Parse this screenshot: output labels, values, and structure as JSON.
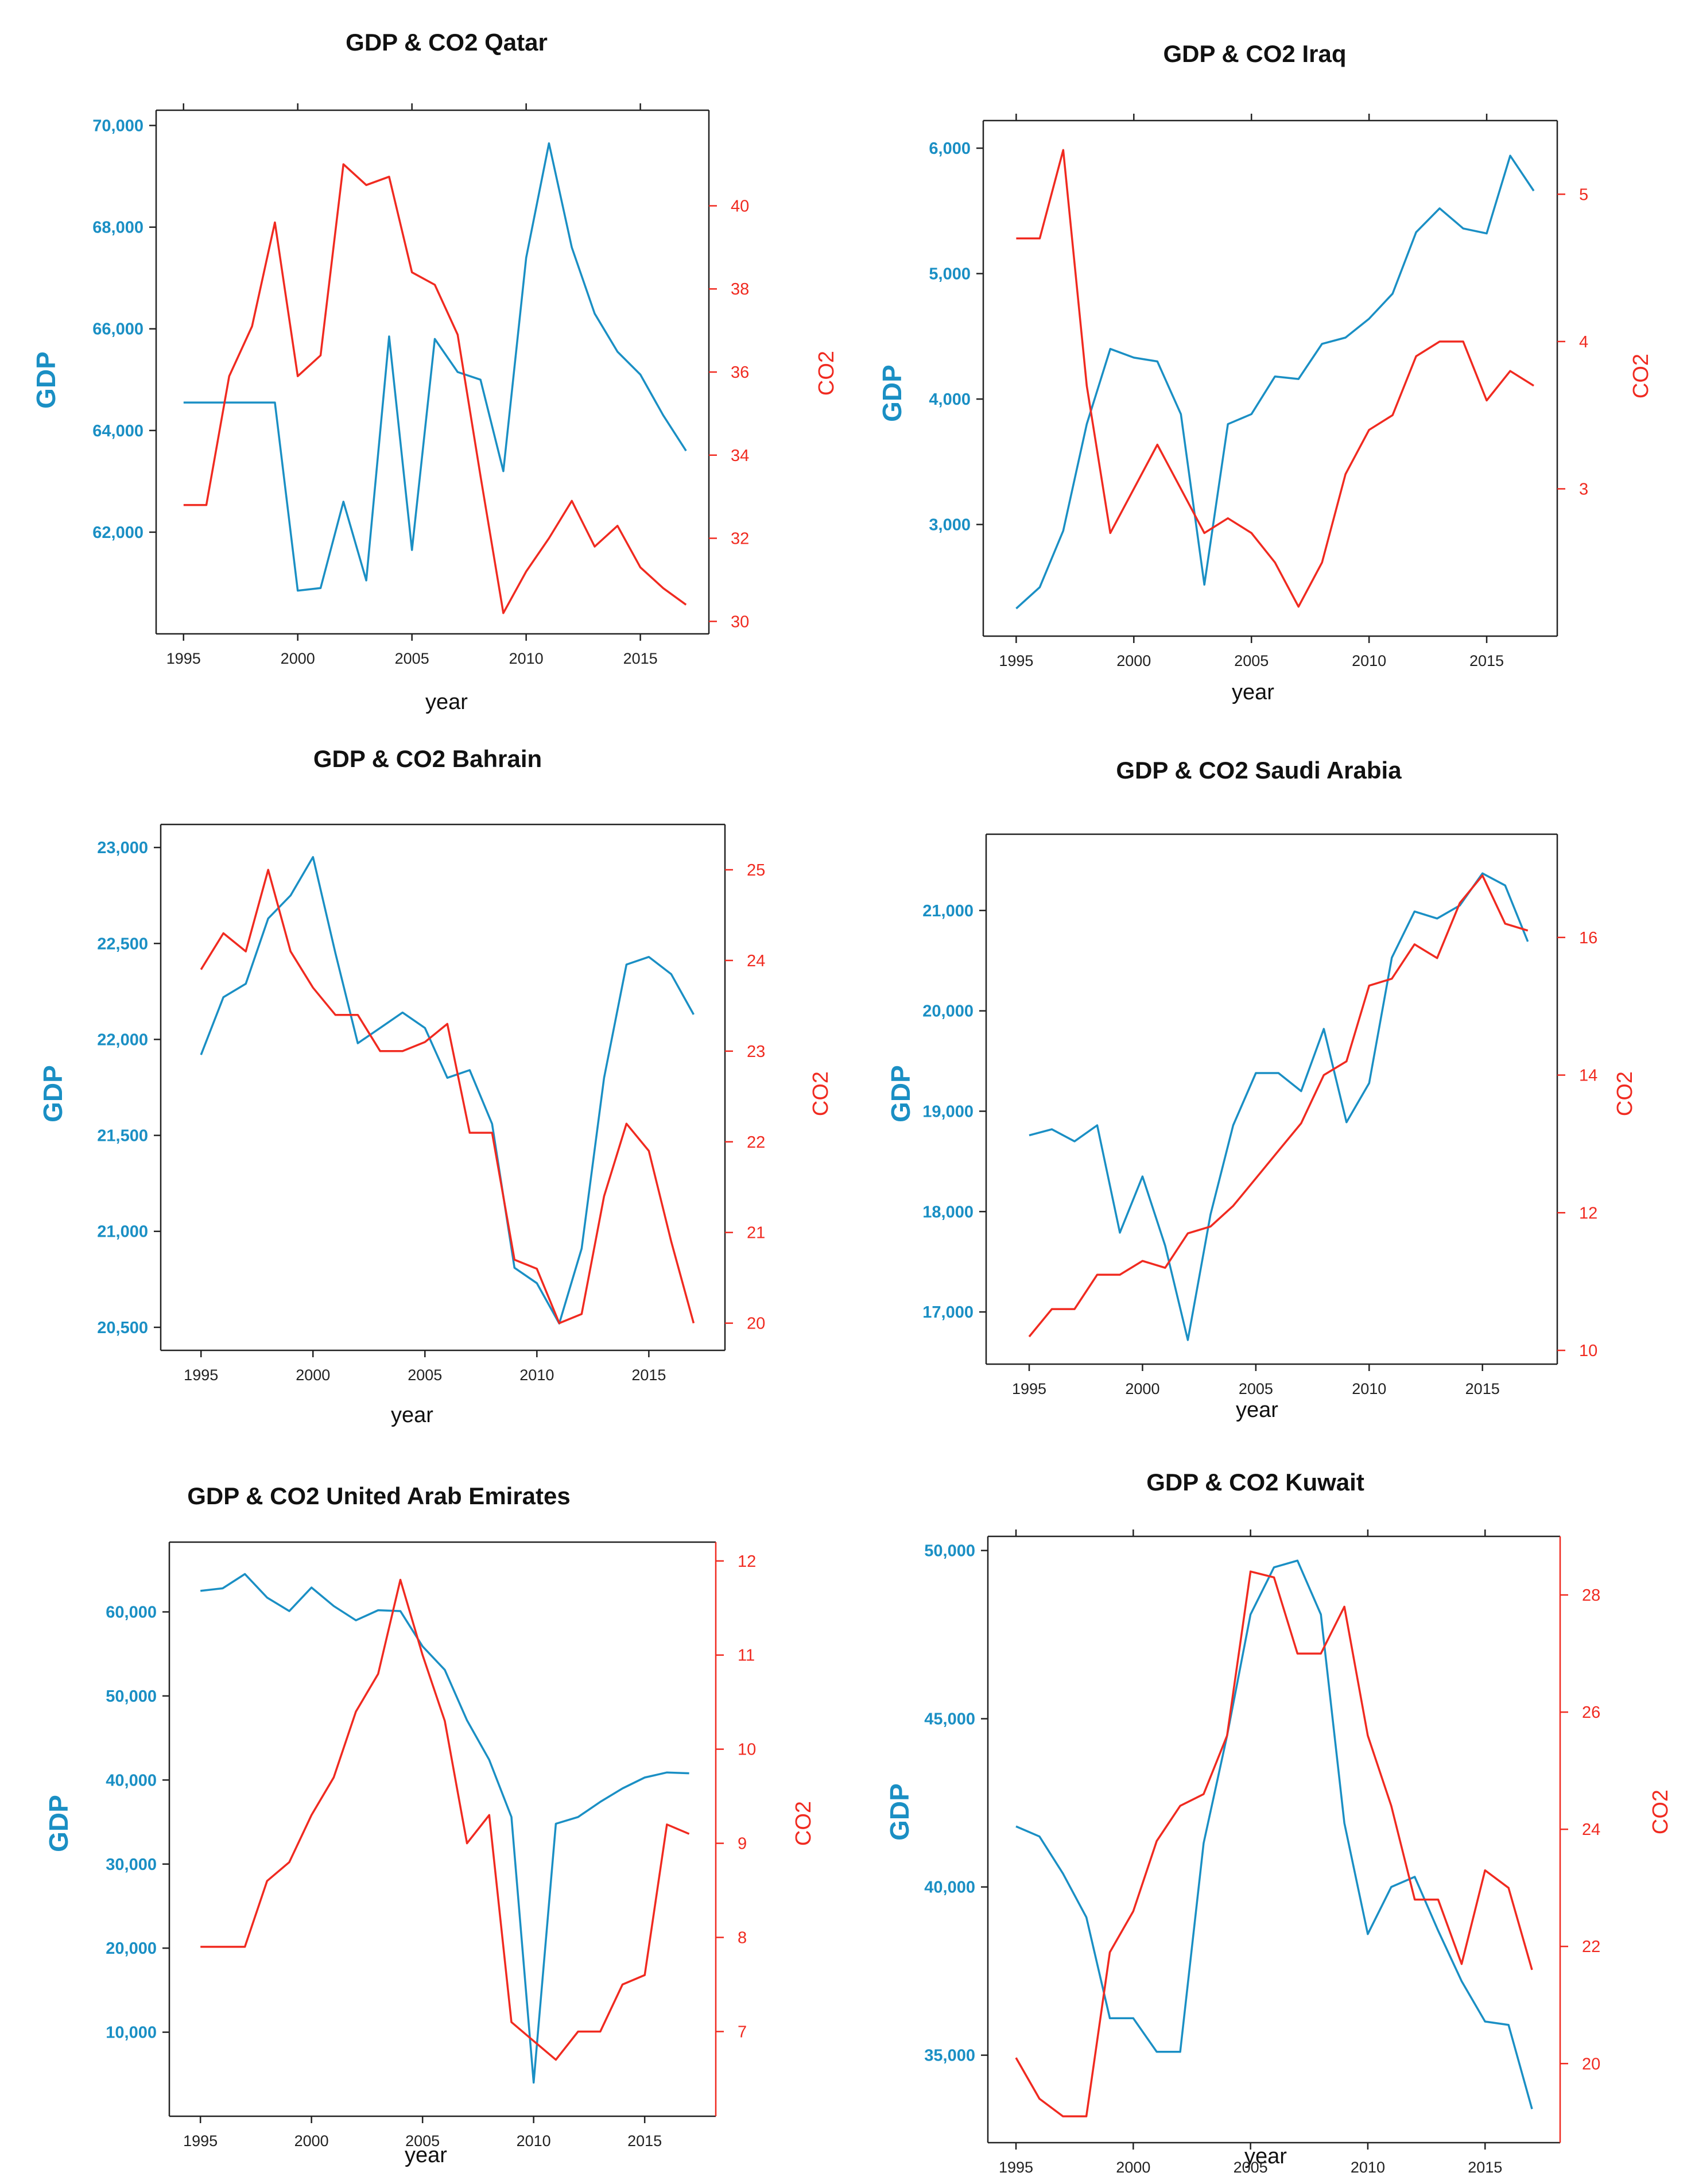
{
  "colors": {
    "gdp": "#1a8fc4",
    "co2": "#f02a20",
    "axis": "#222222"
  },
  "chart_data": [
    {
      "type": "line",
      "title": "GDP & CO2 Qatar",
      "xlabel": "year",
      "ylabel": "GDP",
      "y2label": "CO2",
      "x": [
        1995,
        1996,
        1997,
        1998,
        1999,
        2000,
        2001,
        2002,
        2003,
        2004,
        2005,
        2006,
        2007,
        2008,
        2009,
        2010,
        2011,
        2012,
        2013,
        2014,
        2015,
        2016,
        2017
      ],
      "xticks": [
        "1995",
        "2000",
        "2005",
        "2010",
        "2015"
      ],
      "xlim": [
        1993.8,
        2018
      ],
      "ylim": [
        60000,
        70300
      ],
      "y2lim": [
        29.7,
        42.3
      ],
      "yticks": [
        {
          "v": 62000,
          "label": "62,000"
        },
        {
          "v": 64000,
          "label": "64,000"
        },
        {
          "v": 66000,
          "label": "66,000"
        },
        {
          "v": 68000,
          "label": "68,000"
        },
        {
          "v": 70000,
          "label": "70,000"
        }
      ],
      "y2ticks": [
        {
          "v": 30,
          "label": "30"
        },
        {
          "v": 32,
          "label": "32"
        },
        {
          "v": 34,
          "label": "34"
        },
        {
          "v": 36,
          "label": "36"
        },
        {
          "v": 38,
          "label": "38"
        },
        {
          "v": 40,
          "label": "40"
        }
      ],
      "series": [
        {
          "name": "GDP",
          "axis": "left",
          "values": [
            64550,
            64550,
            64550,
            64550,
            64550,
            60850,
            60900,
            62600,
            61050,
            65850,
            61650,
            65800,
            65150,
            65000,
            63200,
            67400,
            69650,
            67600,
            66300,
            65550,
            65100,
            64300,
            63600
          ]
        },
        {
          "name": "CO2",
          "axis": "right",
          "values": [
            32.8,
            32.8,
            35.9,
            37.1,
            39.6,
            35.9,
            36.4,
            41.0,
            40.5,
            40.7,
            38.4,
            38.1,
            36.9,
            33.5,
            30.2,
            31.2,
            32.0,
            32.9,
            31.8,
            32.3,
            31.3,
            30.8,
            30.4
          ]
        }
      ]
    },
    {
      "type": "line",
      "title": "GDP & CO2 Iraq",
      "xlabel": "year",
      "ylabel": "GDP",
      "y2label": "CO2",
      "x": [
        1995,
        1996,
        1997,
        1998,
        1999,
        2000,
        2001,
        2002,
        2003,
        2004,
        2005,
        2006,
        2007,
        2008,
        2009,
        2010,
        2011,
        2012,
        2013,
        2014,
        2015,
        2016,
        2017
      ],
      "xticks": [
        "1995",
        "2000",
        "2005",
        "2010",
        "2015"
      ],
      "xlim": [
        1993.6,
        2018
      ],
      "ylim": [
        2110,
        6220
      ],
      "y2lim": [
        2.0,
        5.5
      ],
      "yticks": [
        {
          "v": 3000,
          "label": "3,000"
        },
        {
          "v": 4000,
          "label": "4,000"
        },
        {
          "v": 5000,
          "label": "5,000"
        },
        {
          "v": 6000,
          "label": "6,000"
        }
      ],
      "y2ticks": [
        {
          "v": 3,
          "label": "3"
        },
        {
          "v": 4,
          "label": "4"
        },
        {
          "v": 5,
          "label": "5"
        }
      ],
      "series": [
        {
          "name": "GDP",
          "axis": "left",
          "values": [
            2330,
            2500,
            2950,
            3800,
            4400,
            4330,
            4300,
            3880,
            2520,
            3800,
            3880,
            4180,
            4160,
            4440,
            4490,
            4640,
            4840,
            5330,
            5520,
            5360,
            5320,
            5940,
            5660
          ]
        },
        {
          "name": "CO2",
          "axis": "right",
          "values": [
            4.7,
            4.7,
            5.3,
            3.7,
            2.7,
            3.0,
            3.3,
            3.0,
            2.7,
            2.8,
            2.7,
            2.5,
            2.2,
            2.5,
            3.1,
            3.4,
            3.5,
            3.9,
            4.0,
            4.0,
            3.6,
            3.8,
            3.7
          ]
        }
      ]
    },
    {
      "type": "line",
      "title": "GDP & CO2 Bahrain",
      "xlabel": "year",
      "ylabel": "GDP",
      "y2label": "CO2",
      "x": [
        1995,
        1996,
        1997,
        1998,
        1999,
        2000,
        2001,
        2002,
        2003,
        2004,
        2005,
        2006,
        2007,
        2008,
        2009,
        2010,
        2011,
        2012,
        2013,
        2014,
        2015,
        2016,
        2017
      ],
      "xticks": [
        "1995",
        "2000",
        "2005",
        "2010",
        "2015"
      ],
      "xlim": [
        1993.2,
        2018.4
      ],
      "ylim": [
        20380,
        23120
      ],
      "y2lim": [
        19.7,
        25.5
      ],
      "yticks": [
        {
          "v": 20500,
          "label": "20,500"
        },
        {
          "v": 21000,
          "label": "21,000"
        },
        {
          "v": 21500,
          "label": "21,500"
        },
        {
          "v": 22000,
          "label": "22,000"
        },
        {
          "v": 22500,
          "label": "22,500"
        },
        {
          "v": 23000,
          "label": "23,000"
        }
      ],
      "y2ticks": [
        {
          "v": 20,
          "label": "20"
        },
        {
          "v": 21,
          "label": "21"
        },
        {
          "v": 22,
          "label": "22"
        },
        {
          "v": 23,
          "label": "23"
        },
        {
          "v": 24,
          "label": "24"
        },
        {
          "v": 25,
          "label": "25"
        }
      ],
      "series": [
        {
          "name": "GDP",
          "axis": "left",
          "values": [
            21920,
            22220,
            22290,
            22630,
            22750,
            22950,
            22450,
            21980,
            22060,
            22140,
            22060,
            21800,
            21840,
            21560,
            20810,
            20730,
            20520,
            20910,
            21800,
            22390,
            22430,
            22340,
            22130
          ]
        },
        {
          "name": "CO2",
          "axis": "right",
          "values": [
            23.9,
            24.3,
            24.1,
            25.0,
            24.1,
            23.7,
            23.4,
            23.4,
            23.0,
            23.0,
            23.1,
            23.3,
            22.1,
            22.1,
            20.7,
            20.6,
            20.0,
            20.1,
            21.4,
            22.2,
            21.9,
            20.9,
            20.0
          ]
        }
      ]
    },
    {
      "type": "line",
      "title": "GDP & CO2 Saudi Arabia",
      "xlabel": "year",
      "ylabel": "GDP",
      "y2label": "CO2",
      "x": [
        1995,
        1996,
        1997,
        1998,
        1999,
        2000,
        2001,
        2002,
        2003,
        2004,
        2005,
        2006,
        2007,
        2008,
        2009,
        2010,
        2011,
        2012,
        2013,
        2014,
        2015,
        2016,
        2017
      ],
      "xticks": [
        "1995",
        "2000",
        "2005",
        "2010",
        "2015"
      ],
      "xlim": [
        1993.1,
        2018.3
      ],
      "ylim": [
        16480,
        21760
      ],
      "y2lim": [
        9.8,
        17.5
      ],
      "yticks": [
        {
          "v": 17000,
          "label": "17,000"
        },
        {
          "v": 18000,
          "label": "18,000"
        },
        {
          "v": 19000,
          "label": "19,000"
        },
        {
          "v": 20000,
          "label": "20,000"
        },
        {
          "v": 21000,
          "label": "21,000"
        }
      ],
      "y2ticks": [
        {
          "v": 10,
          "label": "10"
        },
        {
          "v": 12,
          "label": "12"
        },
        {
          "v": 14,
          "label": "14"
        },
        {
          "v": 16,
          "label": "16"
        }
      ],
      "series": [
        {
          "name": "GDP",
          "axis": "left",
          "values": [
            18760,
            18820,
            18700,
            18860,
            17790,
            18350,
            17660,
            16720,
            17970,
            18860,
            19380,
            19380,
            19200,
            19820,
            18890,
            19280,
            20530,
            20990,
            20920,
            21050,
            21370,
            21250,
            20690
          ]
        },
        {
          "name": "CO2",
          "axis": "right",
          "values": [
            10.2,
            10.6,
            10.6,
            11.1,
            11.1,
            11.3,
            11.2,
            11.7,
            11.8,
            12.1,
            12.5,
            12.9,
            13.3,
            14.0,
            14.2,
            15.3,
            15.4,
            15.9,
            15.7,
            16.5,
            16.9,
            16.2,
            16.1
          ]
        }
      ]
    },
    {
      "type": "line",
      "title": "GDP & CO2 United Arab Emirates",
      "xlabel": "year",
      "ylabel": "GDP",
      "y2label": "CO2",
      "x": [
        1995,
        1996,
        1997,
        1998,
        1999,
        2000,
        2001,
        2002,
        2003,
        2004,
        2005,
        2006,
        2007,
        2008,
        2009,
        2010,
        2011,
        2012,
        2013,
        2014,
        2015,
        2016,
        2017
      ],
      "xticks": [
        "1995",
        "2000",
        "2005",
        "2010",
        "2015"
      ],
      "xlim": [
        1993.6,
        2018.2
      ],
      "ylim": [
        0,
        68300
      ],
      "y2lim": [
        6.1,
        12.2
      ],
      "yticks": [
        {
          "v": 10000,
          "label": "10,000"
        },
        {
          "v": 20000,
          "label": "20,000"
        },
        {
          "v": 30000,
          "label": "30,000"
        },
        {
          "v": 40000,
          "label": "40,000"
        },
        {
          "v": 50000,
          "label": "50,000"
        },
        {
          "v": 60000,
          "label": "60,000"
        }
      ],
      "y2ticks": [
        {
          "v": 7,
          "label": "7"
        },
        {
          "v": 8,
          "label": "8"
        },
        {
          "v": 9,
          "label": "9"
        },
        {
          "v": 10,
          "label": "10"
        },
        {
          "v": 11,
          "label": "11"
        },
        {
          "v": 12,
          "label": "12"
        }
      ],
      "series": [
        {
          "name": "GDP",
          "axis": "left",
          "values": [
            62500,
            62800,
            64500,
            61700,
            60100,
            62900,
            60700,
            59000,
            60200,
            60100,
            55900,
            53100,
            47100,
            42400,
            35600,
            4000,
            34800,
            35600,
            37400,
            39000,
            40300,
            40900,
            40800
          ]
        },
        {
          "name": "CO2",
          "axis": "right",
          "values": [
            7.9,
            7.9,
            7.9,
            8.6,
            8.8,
            9.3,
            9.7,
            10.4,
            10.8,
            11.8,
            11.0,
            10.3,
            9.0,
            9.3,
            7.1,
            6.9,
            6.7,
            7.0,
            7.0,
            7.5,
            7.6,
            9.2,
            9.1
          ]
        }
      ]
    },
    {
      "type": "line",
      "title": "GDP & CO2 Kuwait",
      "xlabel": "year",
      "ylabel": "GDP",
      "y2label": "CO2",
      "x": [
        1995,
        1996,
        1997,
        1998,
        1999,
        2000,
        2001,
        2002,
        2003,
        2004,
        2005,
        2006,
        2007,
        2008,
        2009,
        2010,
        2011,
        2012,
        2013,
        2014,
        2015,
        2016,
        2017
      ],
      "xticks": [
        "1995",
        "2000",
        "2005",
        "2010",
        "2015"
      ],
      "xlim": [
        1993.8,
        2018.2
      ],
      "ylim": [
        32400,
        50420
      ],
      "y2lim": [
        18.65,
        29.0
      ],
      "yticks": [
        {
          "v": 35000,
          "label": "35,000"
        },
        {
          "v": 40000,
          "label": "40,000"
        },
        {
          "v": 45000,
          "label": "45,000"
        },
        {
          "v": 50000,
          "label": "50,000"
        }
      ],
      "y2ticks": [
        {
          "v": 20,
          "label": "20"
        },
        {
          "v": 22,
          "label": "22"
        },
        {
          "v": 24,
          "label": "24"
        },
        {
          "v": 26,
          "label": "26"
        },
        {
          "v": 28,
          "label": "28"
        }
      ],
      "series": [
        {
          "name": "GDP",
          "axis": "left",
          "values": [
            41800,
            41500,
            40400,
            39100,
            36100,
            36100,
            35100,
            35100,
            41300,
            44500,
            48100,
            49500,
            49700,
            48100,
            41900,
            38600,
            40000,
            40300,
            38700,
            37200,
            36000,
            35900,
            33400
          ]
        },
        {
          "name": "CO2",
          "axis": "right",
          "values": [
            20.1,
            19.4,
            19.1,
            19.1,
            21.9,
            22.6,
            23.8,
            24.4,
            24.6,
            25.6,
            28.4,
            28.3,
            27.0,
            27.0,
            27.8,
            25.6,
            24.4,
            22.8,
            22.8,
            21.7,
            23.3,
            23.0,
            21.6
          ]
        }
      ]
    }
  ]
}
